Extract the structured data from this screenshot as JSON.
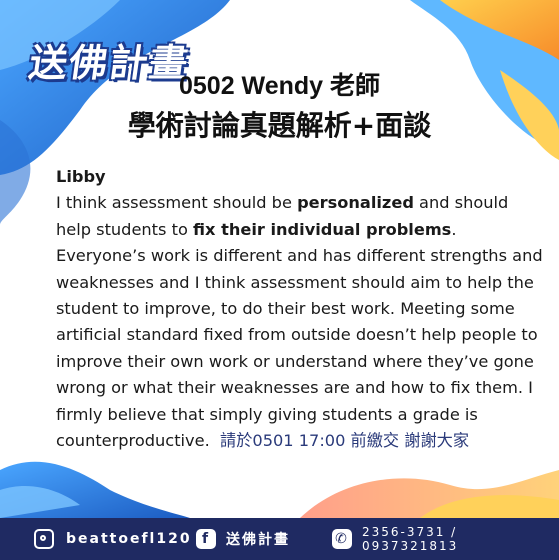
{
  "brand": {
    "logo_text": "送佛計畫"
  },
  "header": {
    "title_line1": "0502 Wendy 老師",
    "title_line2": "學術討論真題解析+面談"
  },
  "content": {
    "speaker": "Libby",
    "seg1": "I think assessment should be ",
    "bold1": "personalized",
    "seg2": " and should help students to ",
    "bold2": "fix their individual problems",
    "seg3": ". Everyone’s work is different and has different strengths and weaknesses and I think assessment should aim to help the student to improve, to do their best work. Meeting some artificial standard fixed from outside doesn’t help people to improve their own work or understand where they’ve gone wrong or what their weaknesses are and how to fix them. I firmly believe that simply giving students a grade is counterproductive.",
    "cta": "請於0501 17:00 前繳交 謝謝大家"
  },
  "footer": {
    "instagram": "beattoefl120",
    "facebook_icon_letter": "f",
    "facebook_name": "送佛計畫",
    "phone": "2356-3731 / 0937321813"
  },
  "colors": {
    "navy": "#1f2a62",
    "blue": "#2b73d6",
    "orange": "#f5a623",
    "yellow": "#ffd15a"
  }
}
